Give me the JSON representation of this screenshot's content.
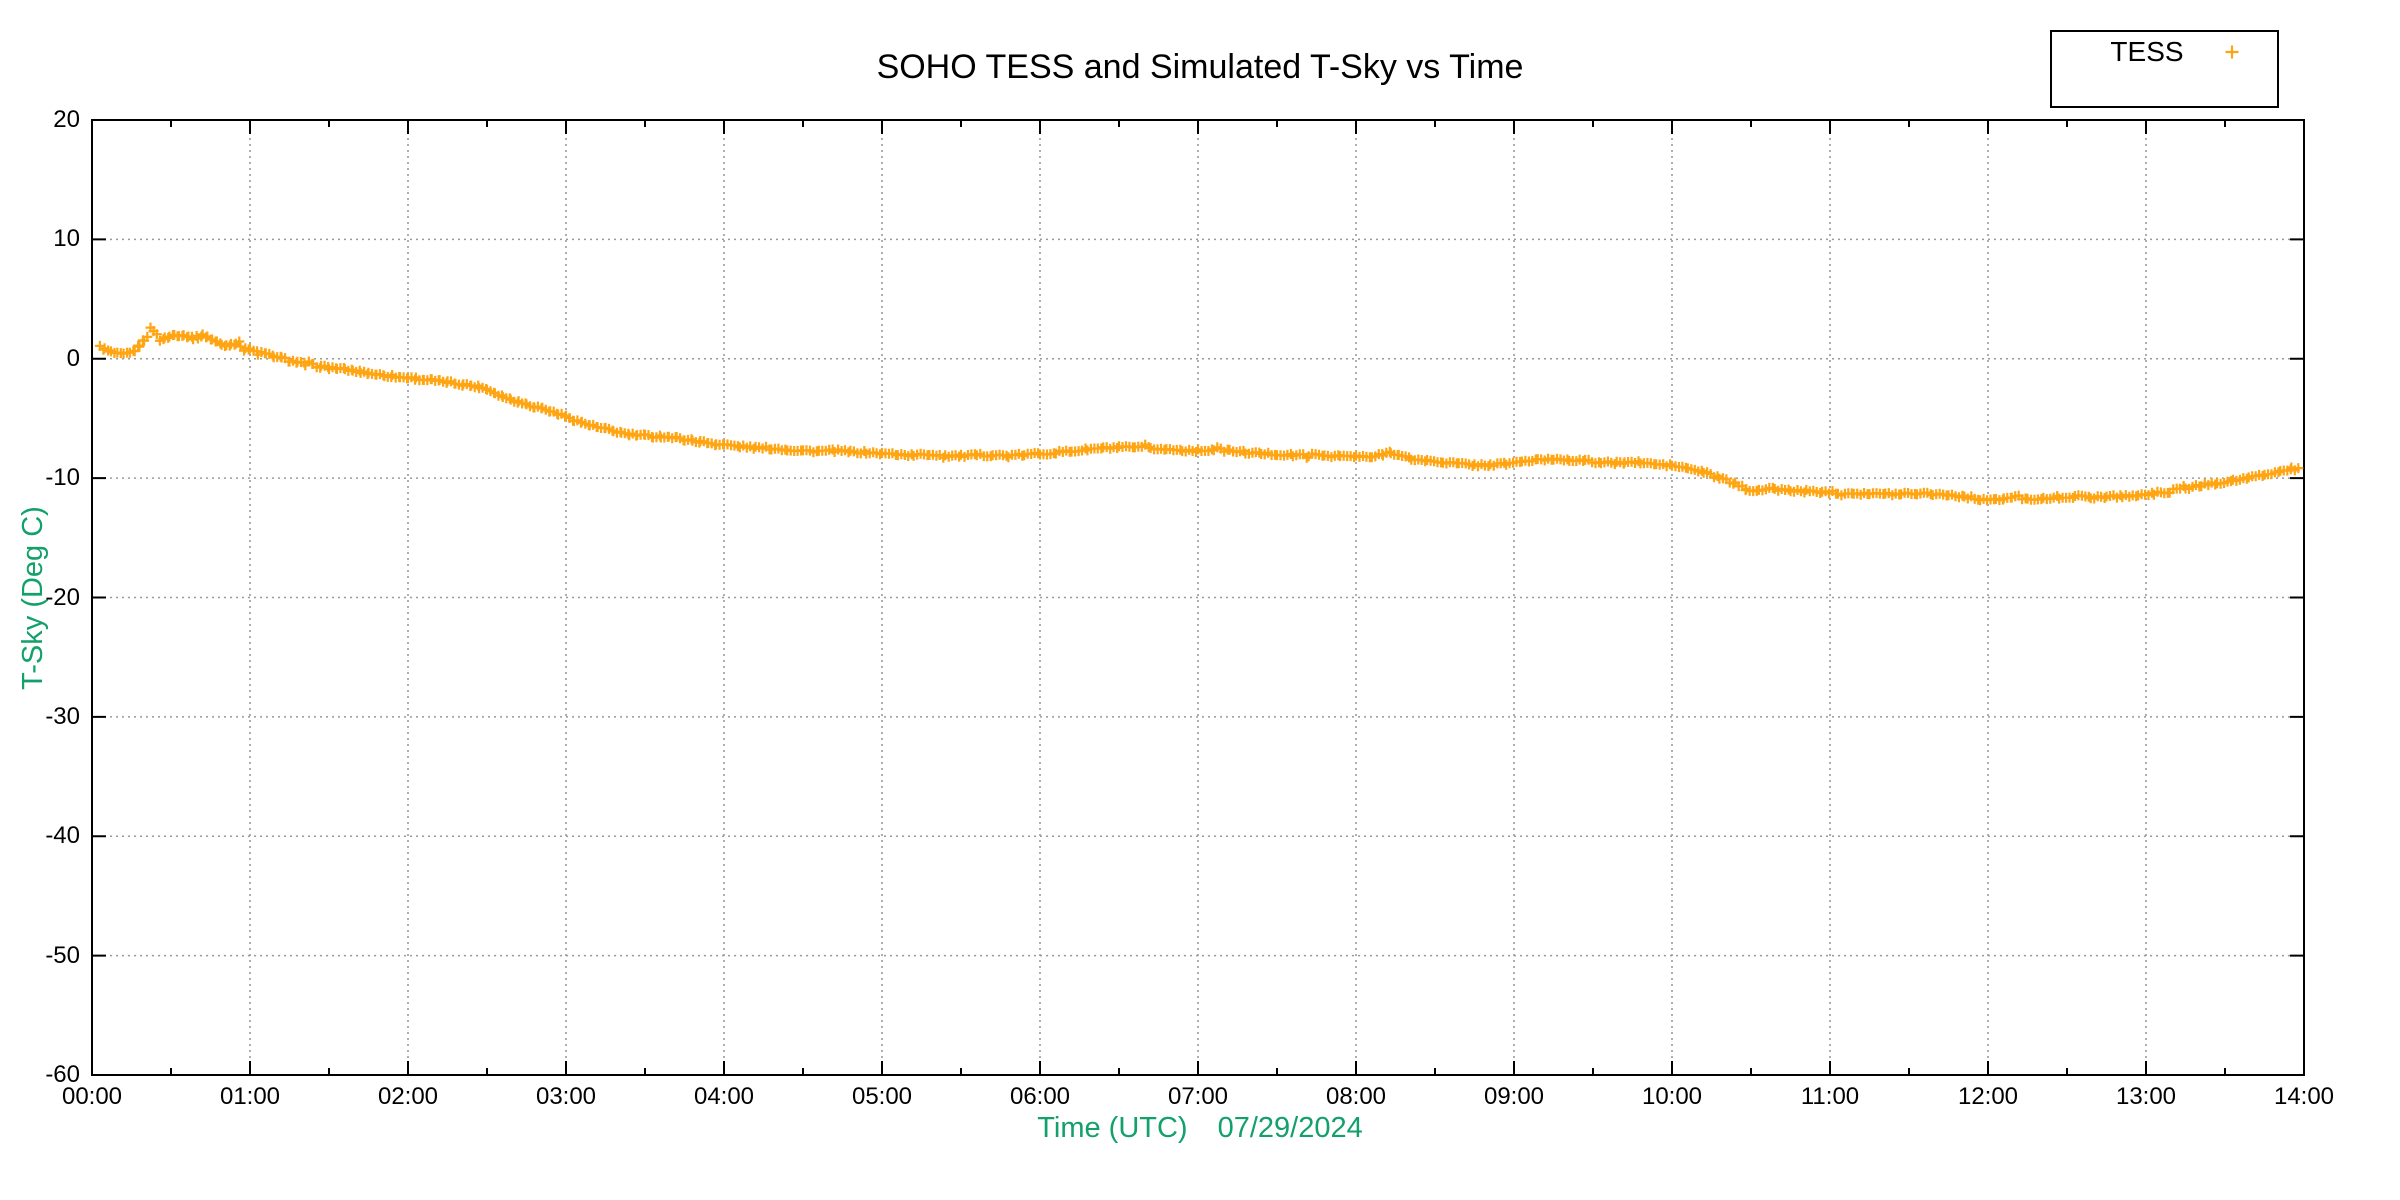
{
  "page": {
    "background": "#ffffff"
  },
  "chart_data": {
    "type": "scatter",
    "title": "SOHO TESS and Simulated T-Sky vs Time",
    "xlabel": "Time (UTC)",
    "date_label": "07/29/2024",
    "ylabel": "T-Sky (Deg C)",
    "xlim_hours": [
      0,
      14
    ],
    "ylim": [
      -60,
      20
    ],
    "x_tick_labels": [
      "00:00",
      "01:00",
      "02:00",
      "03:00",
      "04:00",
      "05:00",
      "06:00",
      "07:00",
      "08:00",
      "09:00",
      "10:00",
      "11:00",
      "12:00",
      "13:00",
      "14:00"
    ],
    "x_minor_tick_interval_hours": 0.5,
    "y_tick_values": [
      20,
      10,
      0,
      -10,
      -20,
      -30,
      -40,
      -50,
      -60
    ],
    "y_tick_labels": [
      "20",
      "10",
      "0",
      "-10",
      "-20",
      "-30",
      "-40",
      "-50",
      "-60"
    ],
    "grid": "dotted-major",
    "grid_color": "#9a9a9a",
    "border_color": "#000000",
    "axis_label_color": "#12a06b",
    "tick_label_color": "#000000",
    "legend": {
      "position": "top-right",
      "entries": [
        {
          "label": "TESS",
          "marker": "plus",
          "color": "#ffa513"
        }
      ]
    },
    "series": [
      {
        "name": "TESS",
        "marker": "plus",
        "color": "#ffa513",
        "points_hours_degC": [
          [
            0.05,
            1.0
          ],
          [
            0.08,
            0.8
          ],
          [
            0.12,
            0.55
          ],
          [
            0.16,
            0.4
          ],
          [
            0.2,
            0.35
          ],
          [
            0.24,
            0.45
          ],
          [
            0.27,
            0.7
          ],
          [
            0.3,
            1.1
          ],
          [
            0.33,
            1.6
          ],
          [
            0.35,
            2.1
          ],
          [
            0.37,
            2.5
          ],
          [
            0.39,
            2.4
          ],
          [
            0.41,
            2.0
          ],
          [
            0.43,
            1.6
          ],
          [
            0.46,
            1.7
          ],
          [
            0.49,
            1.85
          ],
          [
            0.52,
            2.0
          ],
          [
            0.55,
            2.0
          ],
          [
            0.58,
            1.95
          ],
          [
            0.61,
            1.9
          ],
          [
            0.64,
            1.75
          ],
          [
            0.67,
            1.8
          ],
          [
            0.7,
            1.95
          ],
          [
            0.73,
            1.85
          ],
          [
            0.76,
            1.6
          ],
          [
            0.79,
            1.4
          ],
          [
            0.82,
            1.2
          ],
          [
            0.85,
            1.1
          ],
          [
            0.88,
            1.25
          ],
          [
            0.91,
            1.3
          ],
          [
            0.94,
            1.1
          ],
          [
            0.97,
            0.9
          ],
          [
            1.0,
            0.75
          ],
          [
            1.05,
            0.55
          ],
          [
            1.1,
            0.4
          ],
          [
            1.15,
            0.2
          ],
          [
            1.2,
            0.05
          ],
          [
            1.25,
            -0.15
          ],
          [
            1.3,
            -0.3
          ],
          [
            1.35,
            -0.45
          ],
          [
            1.4,
            -0.55
          ],
          [
            1.45,
            -0.65
          ],
          [
            1.5,
            -0.75
          ],
          [
            1.55,
            -0.8
          ],
          [
            1.6,
            -0.9
          ],
          [
            1.65,
            -1.0
          ],
          [
            1.7,
            -1.1
          ],
          [
            1.75,
            -1.2
          ],
          [
            1.8,
            -1.3
          ],
          [
            1.85,
            -1.4
          ],
          [
            1.9,
            -1.45
          ],
          [
            1.95,
            -1.55
          ],
          [
            2.0,
            -1.6
          ],
          [
            2.05,
            -1.65
          ],
          [
            2.1,
            -1.75
          ],
          [
            2.15,
            -1.8
          ],
          [
            2.2,
            -1.9
          ],
          [
            2.25,
            -1.95
          ],
          [
            2.3,
            -2.05
          ],
          [
            2.35,
            -2.15
          ],
          [
            2.4,
            -2.25
          ],
          [
            2.45,
            -2.35
          ],
          [
            2.5,
            -2.55
          ],
          [
            2.55,
            -2.85
          ],
          [
            2.6,
            -3.15
          ],
          [
            2.65,
            -3.4
          ],
          [
            2.7,
            -3.6
          ],
          [
            2.75,
            -3.8
          ],
          [
            2.8,
            -4.0
          ],
          [
            2.85,
            -4.15
          ],
          [
            2.9,
            -4.4
          ],
          [
            2.95,
            -4.6
          ],
          [
            3.0,
            -4.85
          ],
          [
            3.05,
            -5.1
          ],
          [
            3.1,
            -5.35
          ],
          [
            3.15,
            -5.55
          ],
          [
            3.2,
            -5.75
          ],
          [
            3.25,
            -5.9
          ],
          [
            3.3,
            -6.05
          ],
          [
            3.35,
            -6.2
          ],
          [
            3.4,
            -6.35
          ],
          [
            3.45,
            -6.4
          ],
          [
            3.5,
            -6.45
          ],
          [
            3.55,
            -6.5
          ],
          [
            3.6,
            -6.5
          ],
          [
            3.65,
            -6.55
          ],
          [
            3.7,
            -6.65
          ],
          [
            3.75,
            -6.75
          ],
          [
            3.8,
            -6.85
          ],
          [
            3.85,
            -6.95
          ],
          [
            3.9,
            -7.05
          ],
          [
            3.95,
            -7.15
          ],
          [
            4.0,
            -7.2
          ],
          [
            4.1,
            -7.35
          ],
          [
            4.2,
            -7.45
          ],
          [
            4.3,
            -7.5
          ],
          [
            4.4,
            -7.6
          ],
          [
            4.5,
            -7.7
          ],
          [
            4.6,
            -7.75
          ],
          [
            4.7,
            -7.7
          ],
          [
            4.8,
            -7.8
          ],
          [
            4.9,
            -7.85
          ],
          [
            5.0,
            -7.95
          ],
          [
            5.1,
            -8.0
          ],
          [
            5.2,
            -8.1
          ],
          [
            5.3,
            -8.0
          ],
          [
            5.4,
            -8.1
          ],
          [
            5.5,
            -8.15
          ],
          [
            5.6,
            -8.1
          ],
          [
            5.7,
            -8.05
          ],
          [
            5.8,
            -8.15
          ],
          [
            5.9,
            -8.05
          ],
          [
            6.0,
            -7.95
          ],
          [
            6.1,
            -7.85
          ],
          [
            6.2,
            -7.75
          ],
          [
            6.3,
            -7.6
          ],
          [
            6.4,
            -7.5
          ],
          [
            6.5,
            -7.45
          ],
          [
            6.6,
            -7.45
          ],
          [
            6.7,
            -7.5
          ],
          [
            6.8,
            -7.6
          ],
          [
            6.9,
            -7.65
          ],
          [
            7.0,
            -7.7
          ],
          [
            7.1,
            -7.6
          ],
          [
            7.2,
            -7.7
          ],
          [
            7.3,
            -7.85
          ],
          [
            7.4,
            -7.95
          ],
          [
            7.5,
            -8.0
          ],
          [
            7.6,
            -8.1
          ],
          [
            7.7,
            -8.05
          ],
          [
            7.8,
            -8.1
          ],
          [
            7.9,
            -8.15
          ],
          [
            8.0,
            -8.2
          ],
          [
            8.1,
            -8.25
          ],
          [
            8.17,
            -8.0
          ],
          [
            8.22,
            -7.8
          ],
          [
            8.27,
            -8.1
          ],
          [
            8.35,
            -8.4
          ],
          [
            8.45,
            -8.55
          ],
          [
            8.55,
            -8.65
          ],
          [
            8.65,
            -8.8
          ],
          [
            8.75,
            -8.9
          ],
          [
            8.85,
            -8.9
          ],
          [
            8.95,
            -8.8
          ],
          [
            9.05,
            -8.6
          ],
          [
            9.15,
            -8.5
          ],
          [
            9.25,
            -8.4
          ],
          [
            9.35,
            -8.45
          ],
          [
            9.45,
            -8.55
          ],
          [
            9.55,
            -8.7
          ],
          [
            9.65,
            -8.75
          ],
          [
            9.7,
            -8.65
          ],
          [
            9.8,
            -8.7
          ],
          [
            9.9,
            -8.85
          ],
          [
            10.0,
            -8.95
          ],
          [
            10.1,
            -9.2
          ],
          [
            10.2,
            -9.5
          ],
          [
            10.3,
            -10.0
          ],
          [
            10.4,
            -10.45
          ],
          [
            10.47,
            -10.95
          ],
          [
            10.55,
            -11.0
          ],
          [
            10.65,
            -10.9
          ],
          [
            10.75,
            -11.05
          ],
          [
            10.85,
            -11.1
          ],
          [
            10.95,
            -11.15
          ],
          [
            11.05,
            -11.2
          ],
          [
            11.15,
            -11.25
          ],
          [
            11.25,
            -11.3
          ],
          [
            11.35,
            -11.35
          ],
          [
            11.45,
            -11.3
          ],
          [
            11.55,
            -11.25
          ],
          [
            11.65,
            -11.3
          ],
          [
            11.75,
            -11.4
          ],
          [
            11.85,
            -11.55
          ],
          [
            11.95,
            -11.75
          ],
          [
            12.05,
            -11.85
          ],
          [
            12.1,
            -11.75
          ],
          [
            12.15,
            -11.6
          ],
          [
            12.25,
            -11.7
          ],
          [
            12.35,
            -11.75
          ],
          [
            12.45,
            -11.6
          ],
          [
            12.55,
            -11.55
          ],
          [
            12.65,
            -11.6
          ],
          [
            12.75,
            -11.55
          ],
          [
            12.85,
            -11.5
          ],
          [
            12.95,
            -11.45
          ],
          [
            13.05,
            -11.3
          ],
          [
            13.15,
            -11.1
          ],
          [
            13.25,
            -10.85
          ],
          [
            13.35,
            -10.6
          ],
          [
            13.45,
            -10.4
          ],
          [
            13.55,
            -10.2
          ],
          [
            13.65,
            -10.0
          ],
          [
            13.75,
            -9.75
          ],
          [
            13.85,
            -9.45
          ],
          [
            13.92,
            -9.2
          ],
          [
            13.97,
            -9.05
          ]
        ]
      }
    ]
  }
}
